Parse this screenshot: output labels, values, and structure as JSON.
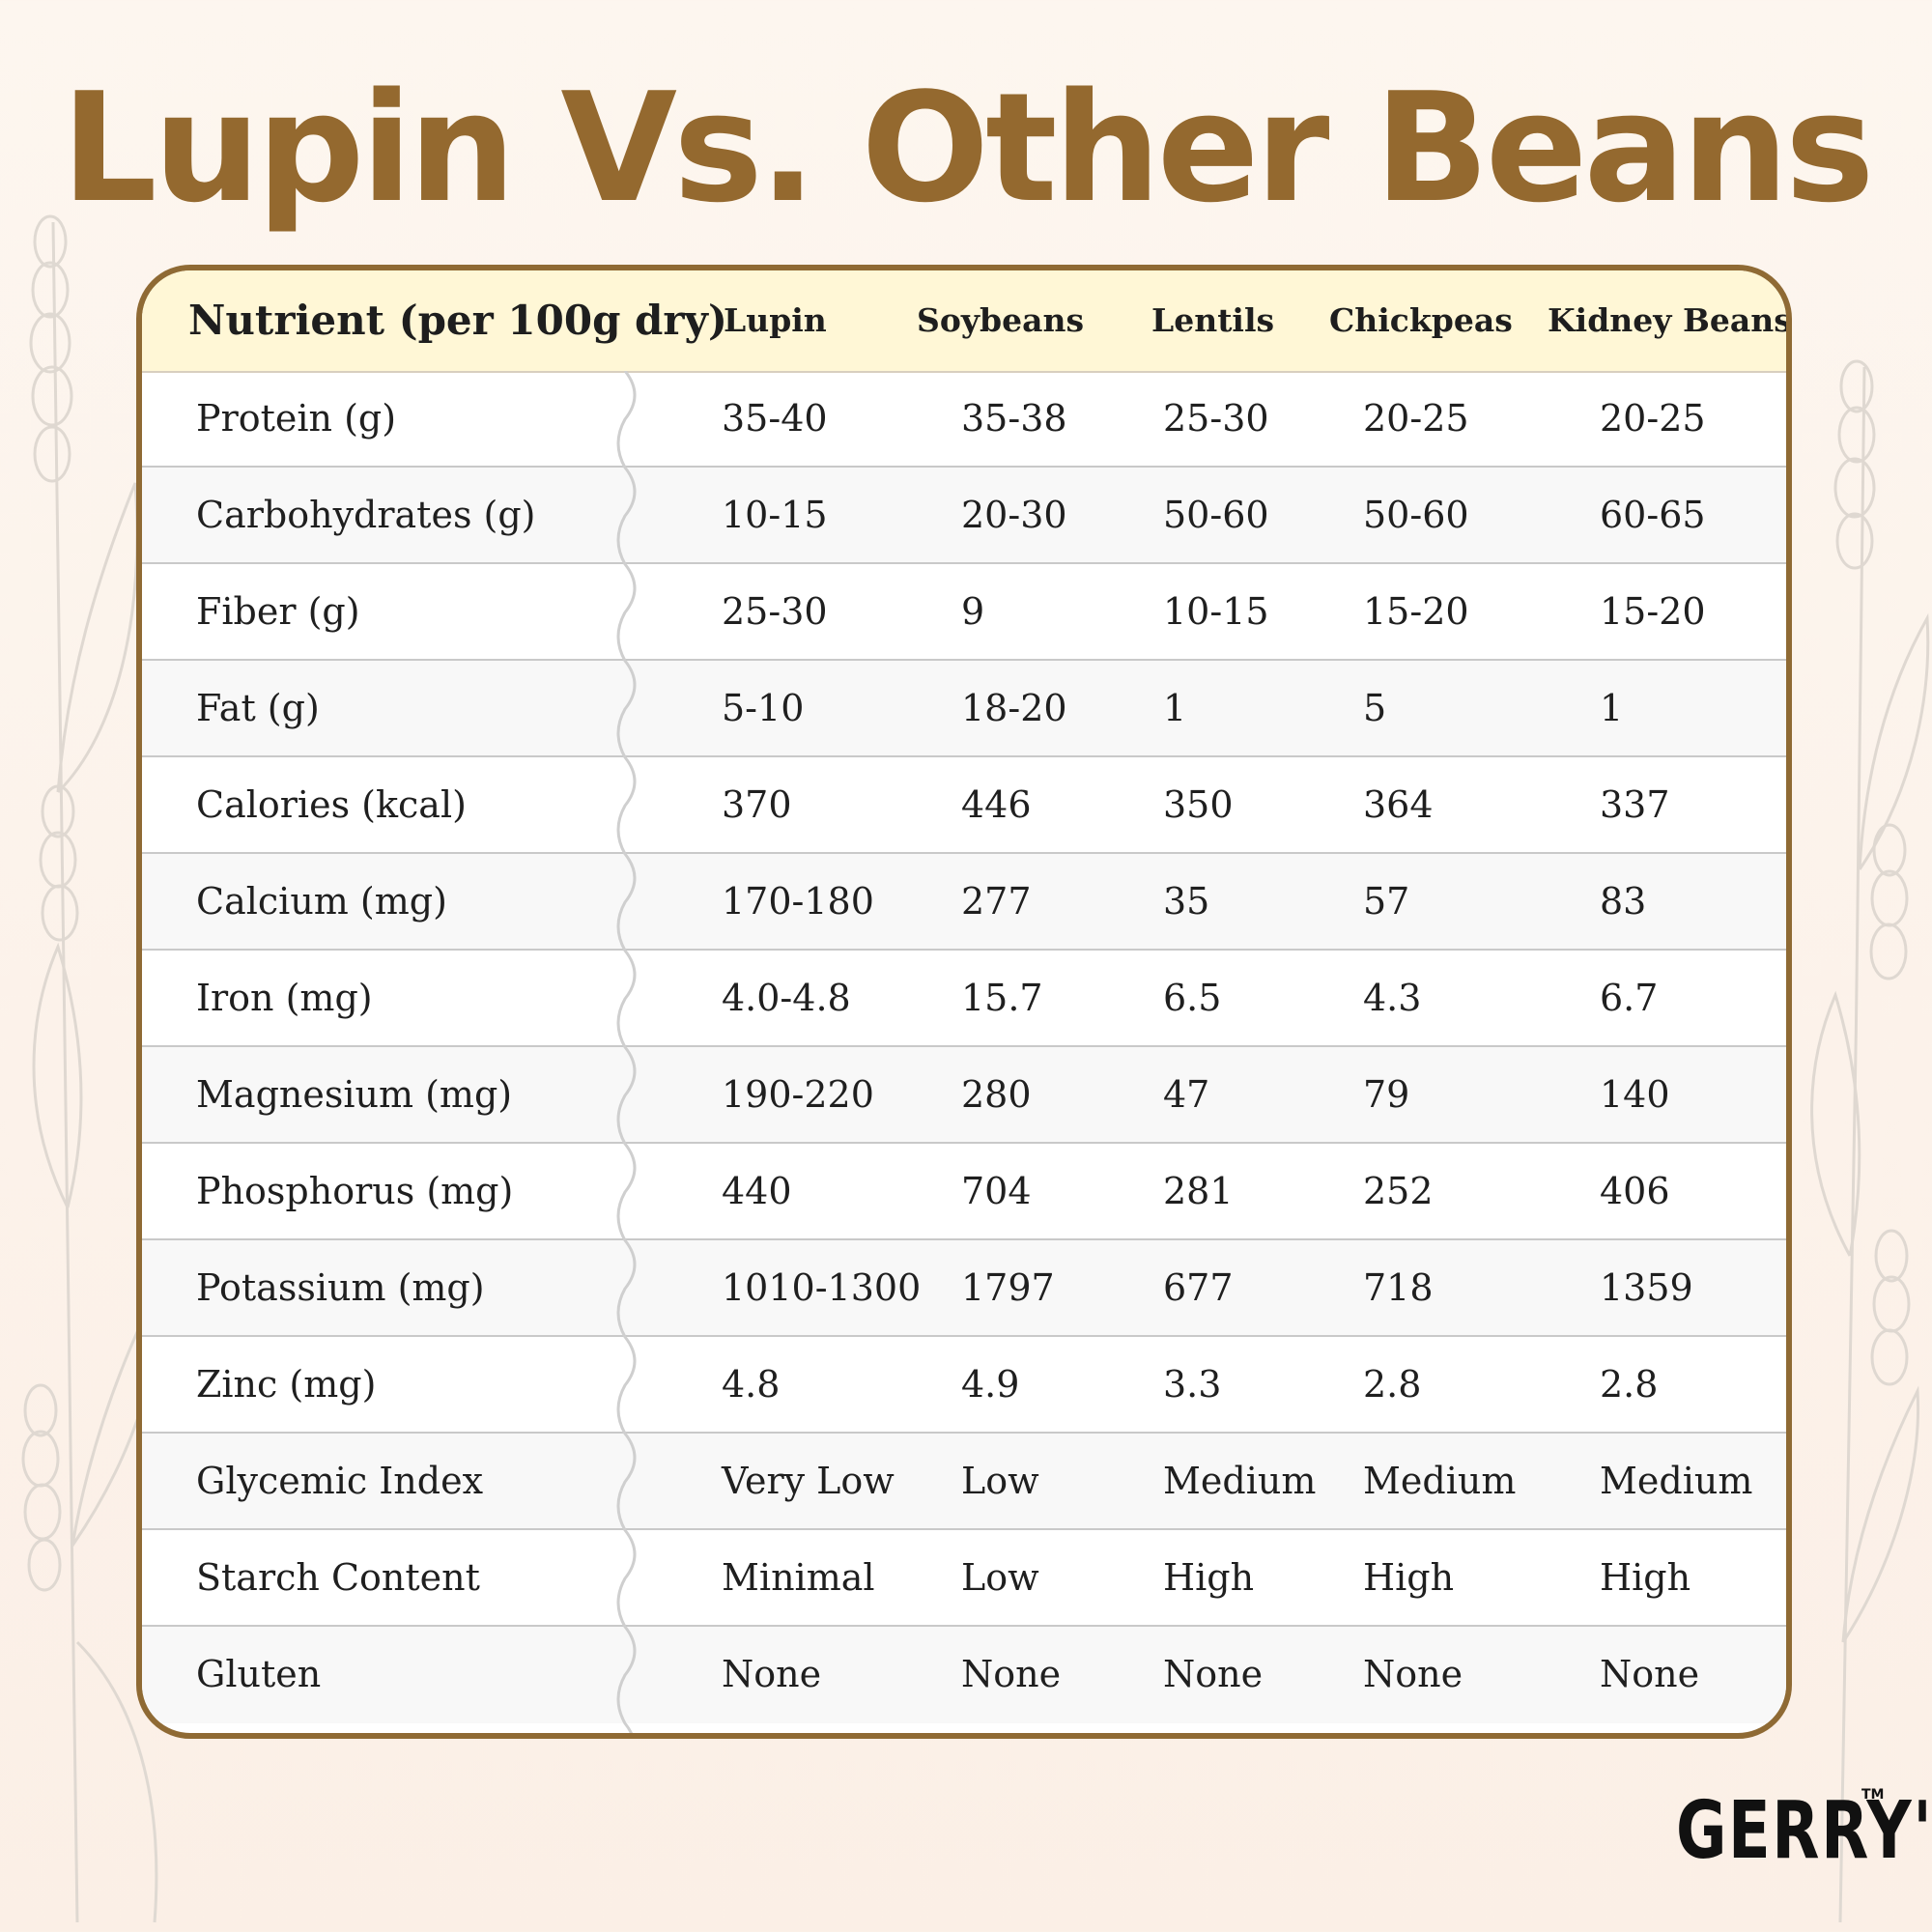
{
  "title": "Lupin Vs. Other Beans",
  "brand": {
    "name": "GERRY'S",
    "tm": "TM"
  },
  "table": {
    "headers": [
      "Nutrient (per 100g dry)",
      "Lupin",
      "Soybeans",
      "Lentils",
      "Chickpeas",
      "Kidney Beans"
    ],
    "rows": [
      [
        "Protein (g)",
        "35-40",
        "35-38",
        "25-30",
        "20-25",
        "20-25"
      ],
      [
        "Carbohydrates (g)",
        "10-15",
        "20-30",
        "50-60",
        "50-60",
        "60-65"
      ],
      [
        "Fiber (g)",
        "25-30",
        "9",
        "10-15",
        "15-20",
        "15-20"
      ],
      [
        "Fat (g)",
        "5-10",
        "18-20",
        "1",
        "5",
        "1"
      ],
      [
        "Calories (kcal)",
        "370",
        "446",
        "350",
        "364",
        "337"
      ],
      [
        "Calcium (mg)",
        "170-180",
        "277",
        "35",
        "57",
        "83"
      ],
      [
        "Iron (mg)",
        "4.0-4.8",
        "15.7",
        "6.5",
        "4.3",
        "6.7"
      ],
      [
        "Magnesium (mg)",
        "190-220",
        "280",
        "47",
        "79",
        "140"
      ],
      [
        "Phosphorus (mg)",
        "440",
        "704",
        "281",
        "252",
        "406"
      ],
      [
        "Potassium (mg)",
        "1010-1300",
        "1797",
        "677",
        "718",
        "1359"
      ],
      [
        "Zinc (mg)",
        "4.8",
        "4.9",
        "3.3",
        "2.8",
        "2.8"
      ],
      [
        "Glycemic Index",
        "Very Low",
        "Low",
        "Medium",
        "Medium",
        "Medium"
      ],
      [
        "Starch Content",
        "Minimal",
        "Low",
        "High",
        "High",
        "High"
      ],
      [
        "Gluten",
        "None",
        "None",
        "None",
        "None",
        "None"
      ]
    ]
  },
  "colors": {
    "title": "#94692f",
    "border": "#8f6a34",
    "header_bg": "#fff7d6",
    "background": "#fdf6ef"
  },
  "icons": [
    "lavender-sprig-decoration-icon",
    "wavy-divider-icon"
  ]
}
